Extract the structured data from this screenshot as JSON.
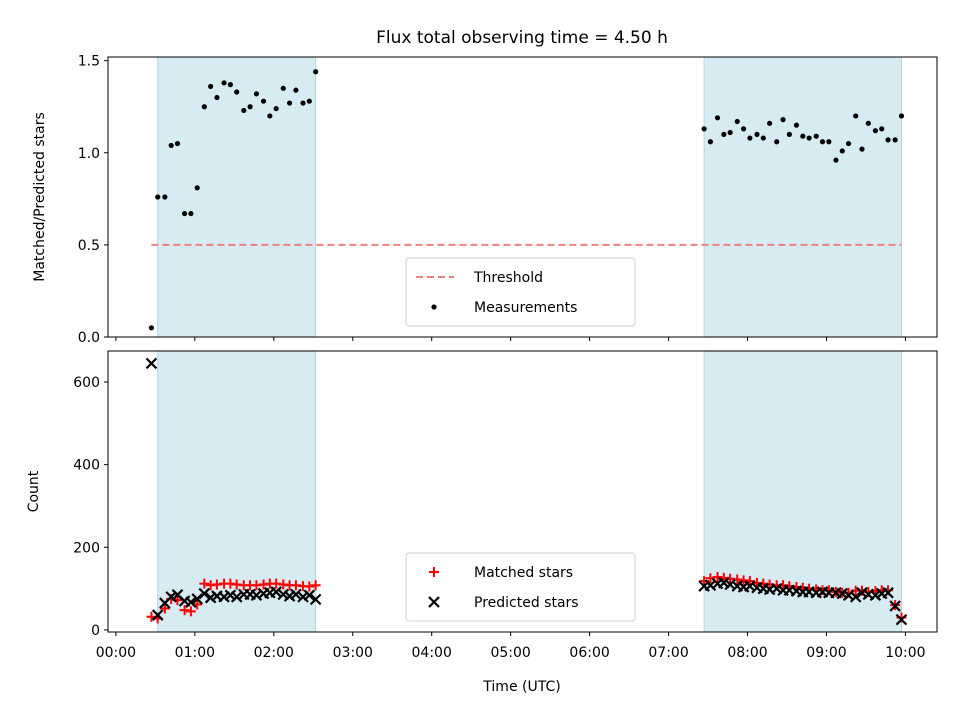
{
  "chart_data": {
    "title": "Flux total observing time = 4.50 h",
    "xlabel": "Time (UTC)",
    "x_ticks": [
      "00:00",
      "01:00",
      "02:00",
      "03:00",
      "04:00",
      "05:00",
      "06:00",
      "07:00",
      "08:00",
      "09:00",
      "10:00"
    ],
    "xlim": [
      -0.1,
      10.4
    ],
    "shaded_intervals": [
      [
        0.53,
        2.53
      ],
      [
        7.45,
        9.95
      ]
    ],
    "shade_color": "#add8e6",
    "panels": [
      {
        "type": "scatter",
        "ylabel": "Matched/Predicted stars",
        "ylim": [
          0.0,
          1.52
        ],
        "y_ticks": [
          "0.0",
          "0.5",
          "1.0",
          "1.5"
        ],
        "legend_position": "lower center",
        "threshold": {
          "name": "Threshold",
          "value": 0.5,
          "x_range": [
            0.45,
            9.95
          ],
          "color": "#f08080"
        },
        "series": [
          {
            "name": "Measurements",
            "color": "#000000",
            "x": [
              0.45,
              0.53,
              0.62,
              0.7,
              0.78,
              0.87,
              0.95,
              1.03,
              1.12,
              1.2,
              1.28,
              1.37,
              1.45,
              1.53,
              1.62,
              1.7,
              1.78,
              1.87,
              1.95,
              2.03,
              2.12,
              2.2,
              2.28,
              2.37,
              2.45,
              2.53,
              7.45,
              7.53,
              7.62,
              7.7,
              7.78,
              7.87,
              7.95,
              8.03,
              8.12,
              8.2,
              8.28,
              8.37,
              8.45,
              8.53,
              8.62,
              8.7,
              8.78,
              8.87,
              8.95,
              9.03,
              9.12,
              9.2,
              9.28,
              9.37,
              9.45,
              9.53,
              9.62,
              9.7,
              9.78,
              9.87,
              9.95
            ],
            "y": [
              0.05,
              0.76,
              0.76,
              1.04,
              1.05,
              0.67,
              0.67,
              0.81,
              1.25,
              1.36,
              1.3,
              1.38,
              1.37,
              1.33,
              1.23,
              1.25,
              1.32,
              1.28,
              1.2,
              1.24,
              1.35,
              1.27,
              1.34,
              1.27,
              1.28,
              1.44,
              1.13,
              1.06,
              1.19,
              1.1,
              1.11,
              1.17,
              1.13,
              1.08,
              1.1,
              1.08,
              1.16,
              1.06,
              1.18,
              1.1,
              1.15,
              1.09,
              1.08,
              1.09,
              1.06,
              1.06,
              0.96,
              1.01,
              1.05,
              1.2,
              1.02,
              1.16,
              1.12,
              1.13,
              1.07,
              1.07,
              1.2
            ]
          }
        ]
      },
      {
        "type": "scatter",
        "ylabel": "Count",
        "ylim": [
          -5,
          675
        ],
        "y_ticks": [
          "0",
          "200",
          "400",
          "600"
        ],
        "legend_position": "lower center",
        "series": [
          {
            "name": "Matched stars",
            "marker": "+",
            "color": "#ff0000",
            "x": [
              0.45,
              0.53,
              0.62,
              0.7,
              0.78,
              0.87,
              0.95,
              1.03,
              1.12,
              1.2,
              1.28,
              1.37,
              1.45,
              1.53,
              1.62,
              1.7,
              1.78,
              1.87,
              1.95,
              2.03,
              2.12,
              2.2,
              2.28,
              2.37,
              2.45,
              2.53,
              7.45,
              7.53,
              7.62,
              7.7,
              7.78,
              7.87,
              7.95,
              8.03,
              8.12,
              8.2,
              8.28,
              8.37,
              8.45,
              8.53,
              8.62,
              8.7,
              8.78,
              8.87,
              8.95,
              9.03,
              9.12,
              9.2,
              9.28,
              9.37,
              9.45,
              9.53,
              9.62,
              9.7,
              9.78,
              9.87,
              9.95
            ],
            "y": [
              32,
              28,
              52,
              75,
              72,
              48,
              45,
              62,
              112,
              108,
              110,
              112,
              112,
              110,
              108,
              108,
              108,
              110,
              112,
              112,
              110,
              108,
              108,
              106,
              105,
              108,
              118,
              125,
              128,
              126,
              124,
              122,
              120,
              118,
              114,
              112,
              110,
              108,
              108,
              106,
              104,
              102,
              100,
              98,
              96,
              96,
              92,
              90,
              90,
              95,
              95,
              92,
              94,
              96,
              96,
              60,
              30
            ]
          },
          {
            "name": "Predicted stars",
            "marker": "x",
            "color": "#000000",
            "x": [
              0.45,
              0.53,
              0.62,
              0.7,
              0.78,
              0.87,
              0.95,
              1.03,
              1.12,
              1.2,
              1.28,
              1.37,
              1.45,
              1.53,
              1.62,
              1.7,
              1.78,
              1.87,
              1.95,
              2.03,
              2.12,
              2.2,
              2.28,
              2.37,
              2.45,
              2.53,
              7.45,
              7.53,
              7.62,
              7.7,
              7.78,
              7.87,
              7.95,
              8.03,
              8.12,
              8.2,
              8.28,
              8.37,
              8.45,
              8.53,
              8.62,
              8.7,
              8.78,
              8.87,
              8.95,
              9.03,
              9.12,
              9.2,
              9.28,
              9.37,
              9.45,
              9.53,
              9.62,
              9.7,
              9.78,
              9.87,
              9.95
            ],
            "y": [
              645,
              36,
              65,
              80,
              85,
              70,
              67,
              75,
              88,
              78,
              82,
              80,
              84,
              80,
              86,
              86,
              84,
              88,
              90,
              92,
              86,
              82,
              86,
              80,
              84,
              74,
              106,
              108,
              112,
              114,
              110,
              106,
              104,
              106,
              102,
              100,
              98,
              100,
              96,
              96,
              94,
              92,
              92,
              90,
              92,
              90,
              90,
              88,
              84,
              80,
              90,
              86,
              84,
              88,
              90,
              58,
              25
            ]
          }
        ]
      }
    ]
  }
}
